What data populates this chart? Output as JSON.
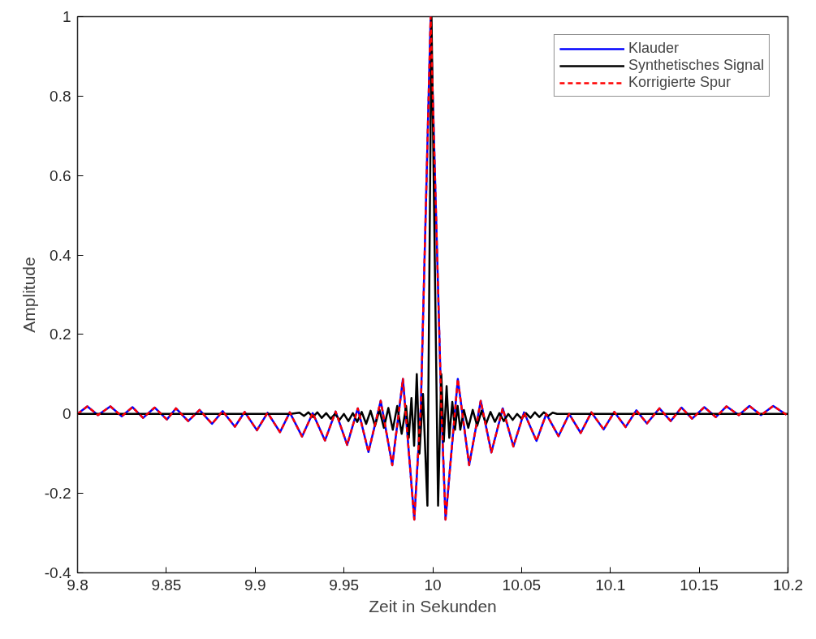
{
  "chart_data": {
    "type": "line",
    "xlabel": "Zeit in Sekunden",
    "ylabel": "Amplitude",
    "xlim": [
      9.8,
      10.2
    ],
    "xticks": [
      9.8,
      9.85,
      9.9,
      9.95,
      10,
      10.05,
      10.1,
      10.15,
      10.2
    ],
    "ylim": [
      -0.4,
      1
    ],
    "yticks": [
      -0.4,
      -0.2,
      0,
      0.2,
      0.4,
      0.6,
      0.8,
      1
    ],
    "grid": false,
    "legend": "top right",
    "series": [
      {
        "name": "Klauder",
        "color": "#0000ff",
        "line_style": "solid",
        "x": [
          9.8,
          9.8055,
          9.8115,
          9.8185,
          9.8249,
          9.8309,
          9.8369,
          9.8434,
          9.8503,
          9.8554,
          9.8623,
          9.8687,
          9.8757,
          9.8817,
          9.8886,
          9.8941,
          9.901,
          9.907,
          9.914,
          9.9195,
          9.9264,
          9.9324,
          9.9393,
          9.9453,
          9.9518,
          9.9578,
          9.9638,
          9.9707,
          9.9772,
          9.9832,
          9.9896,
          9.9933,
          9.9988,
          10.0048,
          10.0072,
          10.0141,
          10.0205,
          10.027,
          10.033,
          10.0394,
          10.0454,
          10.0514,
          10.0584,
          10.0639,
          10.0708,
          10.0768,
          10.0833,
          10.0893,
          10.0962,
          10.1022,
          10.1086,
          10.1146,
          10.1206,
          10.1276,
          10.134,
          10.14,
          10.146,
          10.1529,
          10.1594,
          10.1654,
          10.1723,
          10.1783,
          10.1848,
          10.1917,
          10.1991
        ],
        "values": [
          0.0,
          0.019,
          -0.003,
          0.019,
          -0.006,
          0.017,
          -0.01,
          0.016,
          -0.014,
          0.014,
          -0.018,
          0.01,
          -0.025,
          0.007,
          -0.032,
          0.005,
          -0.041,
          0.003,
          -0.046,
          0.004,
          -0.057,
          0.002,
          -0.067,
          0.006,
          -0.078,
          0.014,
          -0.096,
          0.033,
          -0.129,
          0.088,
          -0.266,
          0.02,
          1.0,
          0.02,
          -0.266,
          0.088,
          -0.129,
          0.033,
          -0.097,
          0.014,
          -0.082,
          0.004,
          -0.068,
          0.0,
          -0.056,
          0.0,
          -0.048,
          0.004,
          -0.039,
          0.005,
          -0.033,
          0.009,
          -0.024,
          0.014,
          -0.018,
          0.016,
          -0.012,
          0.017,
          -0.008,
          0.019,
          -0.003,
          0.02,
          -0.003,
          0.02,
          -0.002
        ]
      },
      {
        "name": "Synthetisches Signal",
        "color": "#000000",
        "line_style": "solid",
        "x": [
          9.8,
          9.92,
          9.925,
          9.9275,
          9.93,
          9.9325,
          9.935,
          9.9375,
          9.94,
          9.9425,
          9.945,
          9.9475,
          9.95,
          9.9525,
          9.955,
          9.9575,
          9.96,
          9.9625,
          9.965,
          9.9675,
          9.97,
          9.9725,
          9.975,
          9.9775,
          9.98,
          9.9825,
          9.985,
          9.9865,
          9.988,
          9.9895,
          9.991,
          9.9925,
          9.9945,
          9.997,
          9.9993,
          10.003,
          10.0048,
          10.0062,
          10.0078,
          10.0093,
          10.011,
          10.0125,
          10.014,
          10.0155,
          10.0175,
          10.02,
          10.0225,
          10.025,
          10.0275,
          10.03,
          10.0325,
          10.035,
          10.0375,
          10.04,
          10.0425,
          10.045,
          10.0475,
          10.05,
          10.0525,
          10.055,
          10.0575,
          10.06,
          10.0625,
          10.065,
          10.0675,
          10.07,
          10.08,
          10.2
        ],
        "values": [
          0.0,
          0.0,
          0.003,
          -0.005,
          0.004,
          -0.008,
          0.004,
          -0.01,
          0.002,
          -0.012,
          0.0,
          -0.015,
          0.0,
          -0.018,
          0.002,
          -0.02,
          0.005,
          -0.025,
          0.008,
          -0.03,
          0.01,
          -0.035,
          0.015,
          -0.04,
          0.02,
          -0.05,
          0.02,
          -0.06,
          0.04,
          -0.08,
          0.1,
          -0.1,
          0.05,
          -0.231,
          1.0,
          -0.231,
          0.1,
          -0.07,
          0.07,
          -0.06,
          0.03,
          -0.04,
          0.02,
          -0.04,
          0.01,
          -0.035,
          0.01,
          -0.03,
          0.008,
          -0.025,
          0.005,
          -0.02,
          0.002,
          -0.018,
          0.0,
          -0.015,
          0.0,
          -0.012,
          0.002,
          -0.01,
          0.004,
          -0.008,
          0.004,
          -0.005,
          0.003,
          0.0,
          0.0,
          0.0
        ]
      },
      {
        "name": "Korrigierte Spur",
        "color": "#ff0000",
        "line_style": "dashed",
        "x": [
          9.8,
          9.8055,
          9.8115,
          9.8185,
          9.8249,
          9.8309,
          9.8369,
          9.8434,
          9.8503,
          9.8554,
          9.8623,
          9.8687,
          9.8757,
          9.8817,
          9.8886,
          9.8941,
          9.901,
          9.907,
          9.914,
          9.9195,
          9.9264,
          9.9324,
          9.9393,
          9.9453,
          9.9518,
          9.9578,
          9.9638,
          9.9707,
          9.9772,
          9.9832,
          9.9896,
          9.9933,
          9.9988,
          10.0048,
          10.0072,
          10.0141,
          10.0205,
          10.027,
          10.033,
          10.0394,
          10.0454,
          10.0514,
          10.0584,
          10.0639,
          10.0708,
          10.0768,
          10.0833,
          10.0893,
          10.0962,
          10.1022,
          10.1086,
          10.1146,
          10.1206,
          10.1276,
          10.134,
          10.14,
          10.146,
          10.1529,
          10.1594,
          10.1654,
          10.1723,
          10.1783,
          10.1848,
          10.1917,
          10.1991
        ],
        "values": [
          0.0,
          0.019,
          -0.003,
          0.019,
          -0.006,
          0.017,
          -0.01,
          0.016,
          -0.014,
          0.014,
          -0.018,
          0.01,
          -0.025,
          0.007,
          -0.032,
          0.005,
          -0.041,
          0.003,
          -0.046,
          0.004,
          -0.057,
          0.002,
          -0.067,
          0.006,
          -0.078,
          0.014,
          -0.096,
          0.033,
          -0.129,
          0.088,
          -0.266,
          0.02,
          1.0,
          0.02,
          -0.266,
          0.088,
          -0.129,
          0.033,
          -0.097,
          0.014,
          -0.082,
          0.004,
          -0.068,
          0.0,
          -0.056,
          0.0,
          -0.048,
          0.004,
          -0.039,
          0.005,
          -0.033,
          0.009,
          -0.024,
          0.014,
          -0.018,
          0.016,
          -0.012,
          0.017,
          -0.008,
          0.019,
          -0.003,
          0.02,
          -0.003,
          0.02,
          -0.002
        ]
      }
    ]
  }
}
